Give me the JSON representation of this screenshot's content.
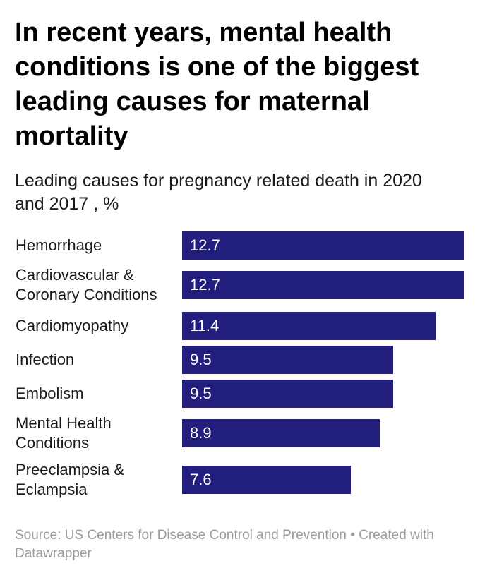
{
  "chart_data": {
    "type": "bar",
    "orientation": "horizontal",
    "title": "In recent years, mental health conditions is one of the biggest leading causes for maternal mortality",
    "subtitle": "Leading causes for pregnancy related death in 2020 and 2017 , %",
    "categories": [
      "Hemorrhage",
      "Cardiovascular & Coronary Conditions",
      "Cardiomyopathy",
      "Infection",
      "Embolism",
      "Mental Health Conditions",
      "Preeclampsia & Eclampsia"
    ],
    "values": [
      12.7,
      12.7,
      11.4,
      9.5,
      9.5,
      8.9,
      7.6
    ],
    "value_labels": [
      "12.7",
      "12.7",
      "11.4",
      "9.5",
      "9.5",
      "8.9",
      "7.6"
    ],
    "xlim": [
      0,
      12.7
    ],
    "grid": false,
    "legend": "none",
    "bar_color": "#221e7e",
    "source": "Source: US Centers for Disease Control and Prevention • Created with Datawrapper"
  }
}
